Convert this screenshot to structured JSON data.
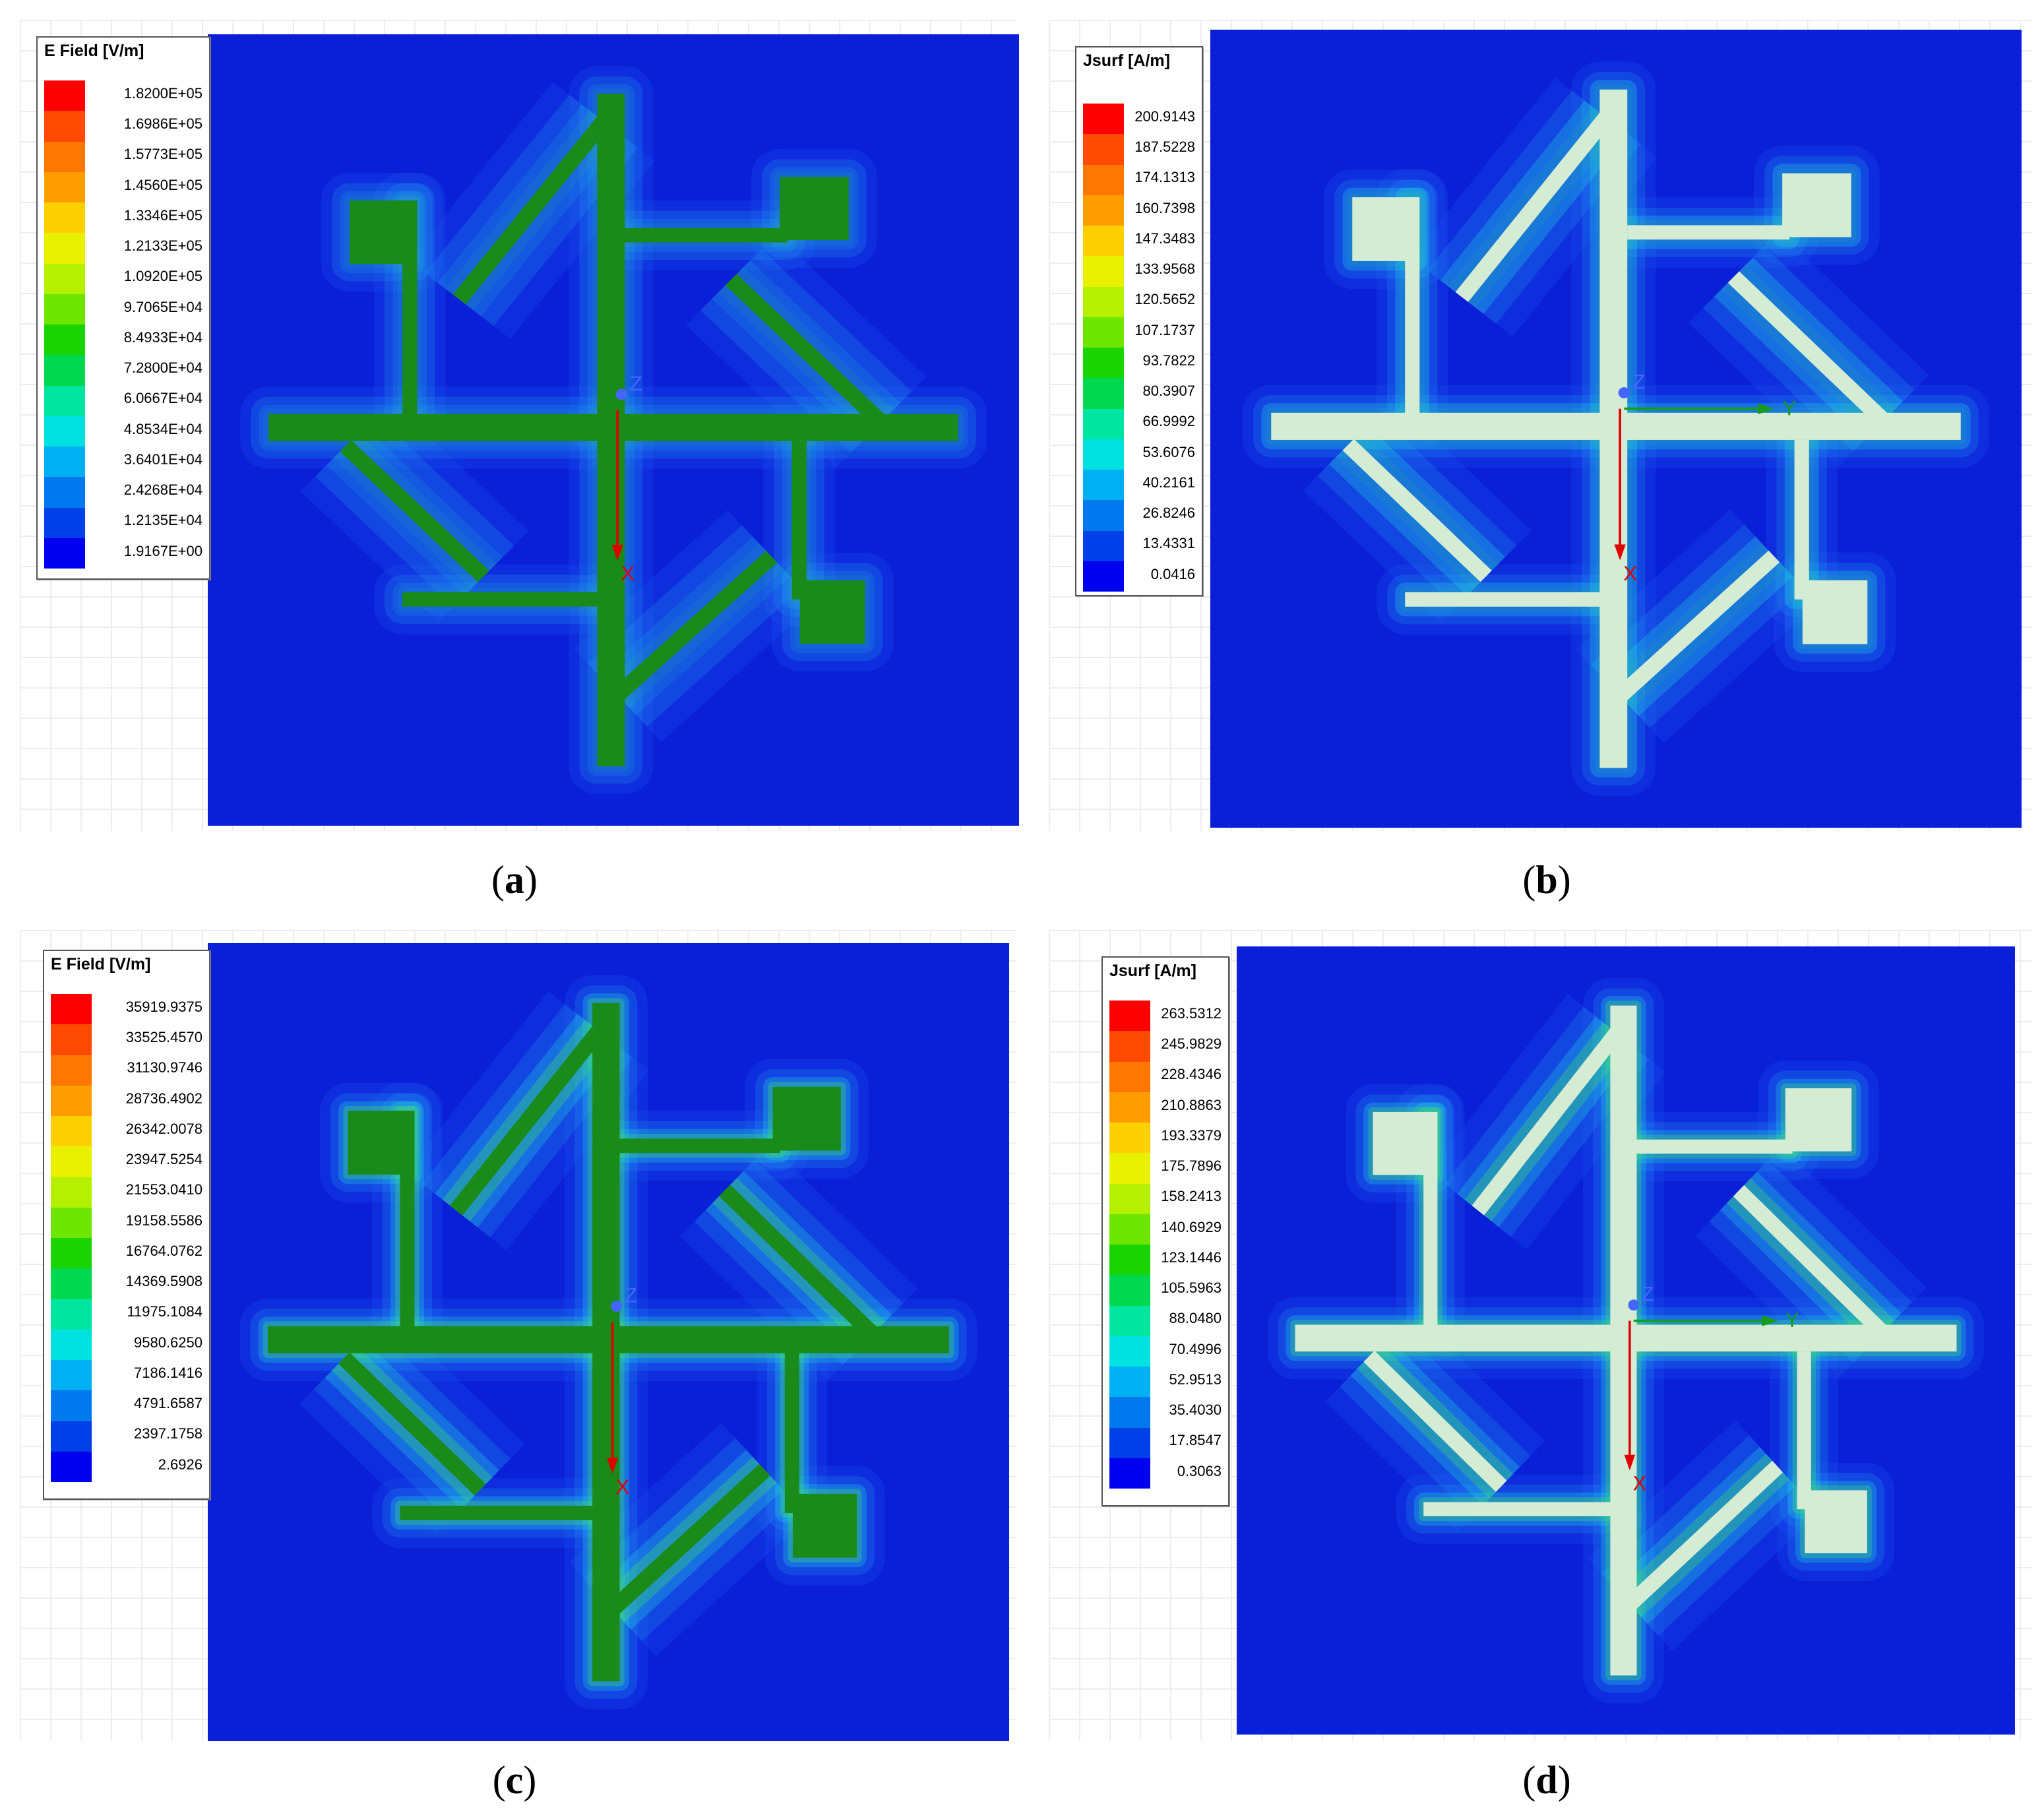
{
  "panels": [
    {
      "id": "a",
      "caption": "a",
      "legend": {
        "title": "E Field [V/m]",
        "values": [
          "1.8200E+05",
          "1.6986E+05",
          "1.5773E+05",
          "1.4560E+05",
          "1.3346E+05",
          "1.2133E+05",
          "1.0920E+05",
          "9.7065E+04",
          "8.4933E+04",
          "7.2800E+04",
          "6.0667E+04",
          "4.8534E+04",
          "3.6401E+04",
          "2.4268E+04",
          "1.2135E+04",
          "1.9167E+00"
        ]
      },
      "axes": {
        "z": "Z",
        "x": "X"
      },
      "rendering": "e-field",
      "hotspot_level": 0.2
    },
    {
      "id": "b",
      "caption": "b",
      "legend": {
        "title": "Jsurf [A/m]",
        "values": [
          "200.9143",
          "187.5228",
          "174.1313",
          "160.7398",
          "147.3483",
          "133.9568",
          "120.5652",
          "107.1737",
          "93.7822",
          "80.3907",
          "66.9992",
          "53.6076",
          "40.2161",
          "26.8246",
          "13.4331",
          "0.0416"
        ]
      },
      "axes": {
        "z": "Z",
        "x": "X",
        "y": "Y"
      },
      "rendering": "surface-current",
      "hotspot_level": 0.45
    },
    {
      "id": "c",
      "caption": "c",
      "legend": {
        "title": "E Field [V/m]",
        "values": [
          "35919.9375",
          "33525.4570",
          "31130.9746",
          "28736.4902",
          "26342.0078",
          "23947.5254",
          "21553.0410",
          "19158.5586",
          "16764.0762",
          "14369.5908",
          "11975.1084",
          "9580.6250",
          "7186.1416",
          "4791.6587",
          "2397.1758",
          "2.6926"
        ]
      },
      "axes": {
        "z": "Z",
        "x": "X"
      },
      "rendering": "e-field",
      "hotspot_level": 0.55
    },
    {
      "id": "d",
      "caption": "d",
      "legend": {
        "title": "Jsurf [A/m]",
        "values": [
          "263.5312",
          "245.9829",
          "228.4346",
          "210.8863",
          "193.3379",
          "175.7896",
          "158.2413",
          "140.6929",
          "123.1446",
          "105.5963",
          "88.0480",
          "70.4996",
          "52.9513",
          "35.4030",
          "17.8547",
          "0.3063"
        ]
      },
      "axes": {
        "z": "Z",
        "x": "X",
        "y": "Y"
      },
      "rendering": "surface-current",
      "hotspot_level": 0.6
    }
  ],
  "colormap": [
    "#ff0000",
    "#ff4a00",
    "#ff7700",
    "#ff9d00",
    "#ffd000",
    "#e8f200",
    "#b4f000",
    "#6ee600",
    "#19d400",
    "#00d84f",
    "#00e6a0",
    "#00e2e0",
    "#00b0f2",
    "#0078ee",
    "#0040e8",
    "#0000f0"
  ],
  "colors": {
    "substrate": "#0a1fd8",
    "metal_efield": "#1a8a1a",
    "metal_jsurf": "#d4ecd4",
    "axis_x": "#e00000",
    "axis_y": "#1a9a1a",
    "axis_z": "#4466ff"
  }
}
